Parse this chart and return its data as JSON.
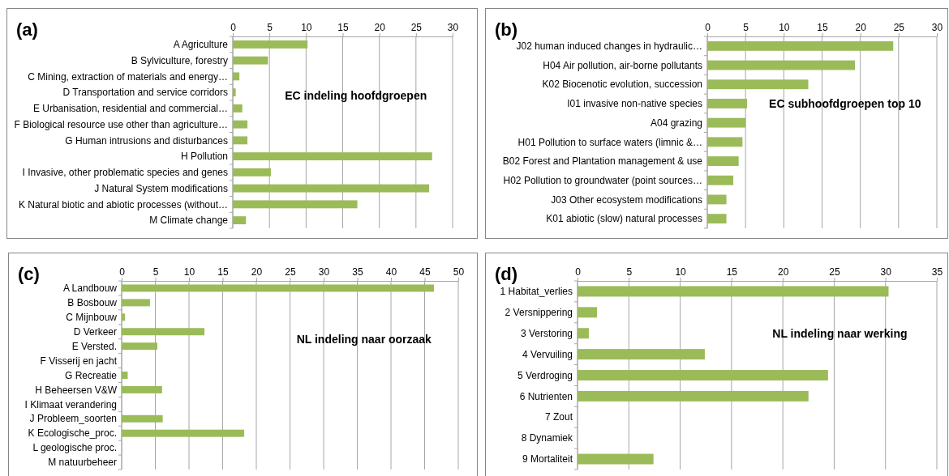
{
  "chart_data": [
    {
      "type": "bar",
      "orientation": "horizontal",
      "title": "EC indeling hoofdgroepen",
      "annotations": [
        "(a)"
      ],
      "categories": [
        "A Agriculture",
        "B Sylviculture, forestry",
        "C Mining, extraction of materials and energy…",
        "D Transportation and service corridors",
        "E Urbanisation, residential and commercial…",
        "F Biological resource use other than agriculture…",
        "G Human intrusions and disturbances",
        "H Pollution",
        "I Invasive, other problematic species and genes",
        "J Natural System modifications",
        "K Natural biotic and abiotic processes (without…",
        "M Climate change"
      ],
      "values": [
        10.2,
        4.8,
        0.9,
        0.4,
        1.3,
        2.0,
        2.0,
        27.2,
        5.2,
        26.8,
        17.0,
        1.8
      ],
      "color": "#9bbb59",
      "xlim": [
        0,
        30
      ],
      "xticks": [
        0,
        5,
        10,
        15,
        20,
        25,
        30
      ],
      "grid": "x"
    },
    {
      "type": "bar",
      "orientation": "horizontal",
      "title": "EC subhoofdgroepen top 10",
      "annotations": [
        "(b)"
      ],
      "categories": [
        "J02 human induced changes in hydraulic…",
        "H04 Air pollution, air-borne pollutants",
        "K02 Biocenotic evolution, succession",
        "I01 invasive non-native species",
        "A04 grazing",
        "H01 Pollution to surface waters (limnic &…",
        "B02 Forest and Plantation management & use",
        "H02 Pollution to groundwater (point sources…",
        "J03 Other ecosystem modifications",
        "K01 abiotic (slow) natural processes"
      ],
      "values": [
        24.3,
        19.3,
        13.2,
        5.2,
        5.0,
        4.6,
        4.1,
        3.4,
        2.5,
        2.5
      ],
      "color": "#9bbb59",
      "xlim": [
        0,
        30
      ],
      "xticks": [
        0,
        5,
        10,
        15,
        20,
        25,
        30
      ],
      "grid": "x"
    },
    {
      "type": "bar",
      "orientation": "horizontal",
      "title": "NL indeling naar oorzaak",
      "annotations": [
        "(c)"
      ],
      "categories": [
        "A Landbouw",
        "B Bosbouw",
        "C Mijnbouw",
        "D Verkeer",
        "E Versted.",
        "F Visserij en jacht",
        "G Recreatie",
        "H Beheersen V&W",
        "I Klimaat verandering",
        "J Probleem_soorten",
        "K Ecologische_proc.",
        "L geologische proc.",
        "M natuurbeheer"
      ],
      "values": [
        46.4,
        4.2,
        0.5,
        12.3,
        5.3,
        0,
        0.9,
        6.0,
        0,
        6.1,
        18.2,
        0,
        0
      ],
      "color": "#9bbb59",
      "xlim": [
        0,
        50
      ],
      "xticks": [
        0,
        5,
        10,
        15,
        20,
        25,
        30,
        35,
        40,
        45,
        50
      ],
      "grid": "x"
    },
    {
      "type": "bar",
      "orientation": "horizontal",
      "title": "NL indeling naar werking",
      "annotations": [
        "(d)"
      ],
      "categories": [
        "1 Habitat_verlies",
        "2 Versnippering",
        "3 Verstoring",
        "4 Vervuiling",
        "5 Verdroging",
        "6 Nutrienten",
        "7 Zout",
        "8 Dynamiek",
        "9 Mortaliteit"
      ],
      "values": [
        30.3,
        1.9,
        1.1,
        12.4,
        24.4,
        22.5,
        0,
        0,
        7.4
      ],
      "color": "#9bbb59",
      "xlim": [
        0,
        35
      ],
      "xticks": [
        0,
        5,
        10,
        15,
        20,
        25,
        30,
        35
      ],
      "grid": "x"
    }
  ]
}
